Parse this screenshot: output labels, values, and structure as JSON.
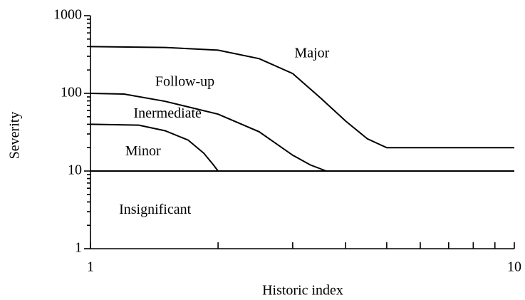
{
  "chart_data": {
    "type": "line",
    "xlabel": "Historic index",
    "ylabel": "Severity",
    "xlog": true,
    "ylog": true,
    "xlim": [
      1,
      10
    ],
    "ylim": [
      1,
      1000
    ],
    "xticks": [
      1,
      10
    ],
    "yticks": [
      1,
      10,
      100,
      1000
    ],
    "x_minor_ticks": [
      2,
      3,
      4,
      5,
      6,
      7,
      8,
      9
    ],
    "y_minor_ticks": [
      2,
      3,
      4,
      5,
      6,
      7,
      8,
      9,
      20,
      30,
      40,
      50,
      60,
      70,
      80,
      90,
      200,
      300,
      400,
      500,
      600,
      700,
      800,
      900
    ],
    "color": "#000000",
    "series": [
      {
        "x": [
          1,
          1.5,
          2,
          2.5,
          3,
          3.5,
          4,
          4.5,
          4.9,
          5,
          10
        ],
        "values": [
          400,
          390,
          360,
          280,
          180,
          86,
          44,
          26,
          21,
          20,
          20
        ]
      },
      {
        "x": [
          1,
          1.2,
          1.5,
          2,
          2.5,
          3,
          3.3,
          3.6
        ],
        "values": [
          100,
          98,
          79,
          54,
          32,
          16,
          12,
          10
        ]
      },
      {
        "x": [
          1,
          1.3,
          1.5,
          1.7,
          1.85,
          1.95,
          2
        ],
        "values": [
          40,
          39,
          33,
          25,
          17,
          12,
          10
        ]
      },
      {
        "x": [
          1,
          10
        ],
        "values": [
          10,
          10
        ]
      }
    ],
    "annotations": [
      {
        "text": "Major",
        "x": 3.33,
        "y": 320
      },
      {
        "text": "Follow-up",
        "x": 1.67,
        "y": 137
      },
      {
        "text": "Inermediate",
        "x": 1.52,
        "y": 54
      },
      {
        "text": "Minor",
        "x": 1.33,
        "y": 17.5
      },
      {
        "text": "Insignificant",
        "x": 1.42,
        "y": 3.1
      }
    ]
  }
}
